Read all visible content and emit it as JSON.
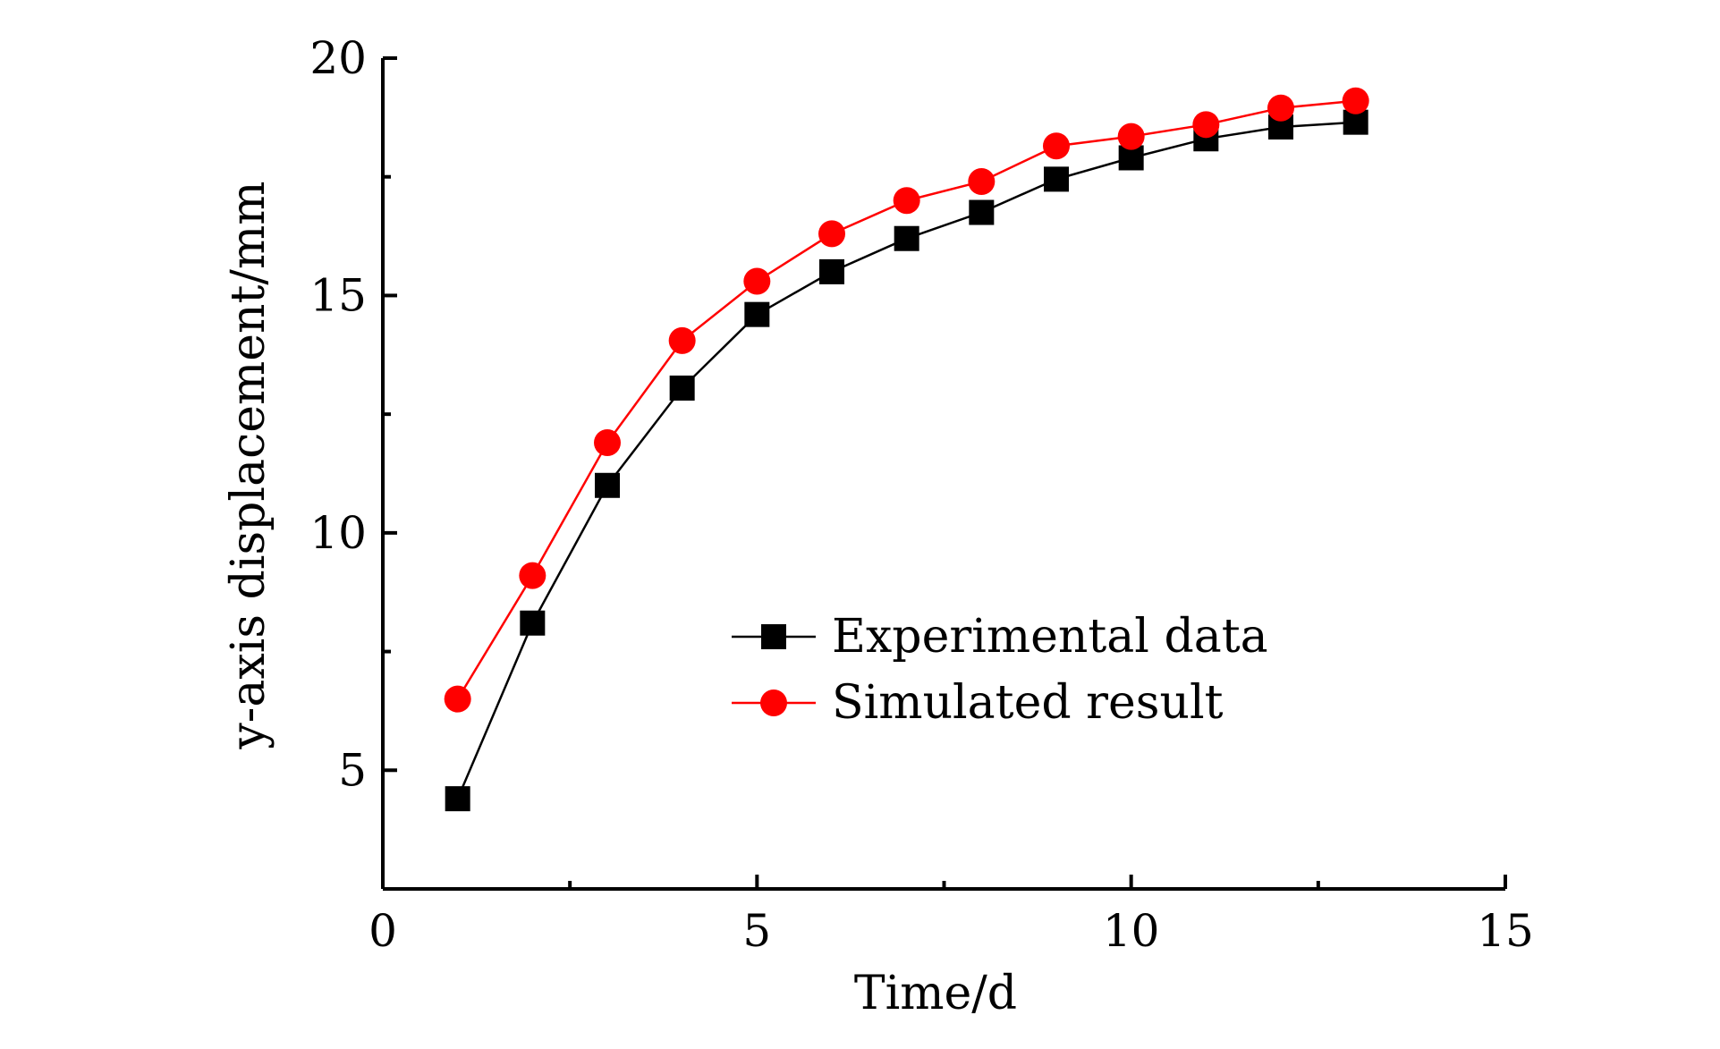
{
  "chart_data": {
    "type": "line",
    "title": "",
    "xlabel": "Time/d",
    "ylabel": "y-axis displacement/mm",
    "xlim": [
      0,
      15
    ],
    "ylim": [
      2.5,
      20
    ],
    "x_ticks": [
      "0",
      "5",
      "10",
      "15"
    ],
    "y_ticks": [
      "5",
      "10",
      "15",
      "20"
    ],
    "grid": false,
    "legend_position": "center-right",
    "x": [
      1,
      2,
      3,
      4,
      5,
      6,
      7,
      8,
      9,
      10,
      11,
      12,
      13
    ],
    "series": [
      {
        "name": "Experimental data",
        "color": "#000000",
        "marker": "square",
        "values": [
          4.4,
          8.1,
          11.0,
          13.05,
          14.6,
          15.5,
          16.2,
          16.75,
          17.45,
          17.9,
          18.3,
          18.55,
          18.65
        ]
      },
      {
        "name": "Simulated result",
        "color": "#ff0000",
        "marker": "circle",
        "values": [
          6.5,
          9.1,
          11.9,
          14.05,
          15.3,
          16.3,
          17.0,
          17.4,
          18.15,
          18.35,
          18.6,
          18.95,
          19.1
        ]
      }
    ]
  }
}
